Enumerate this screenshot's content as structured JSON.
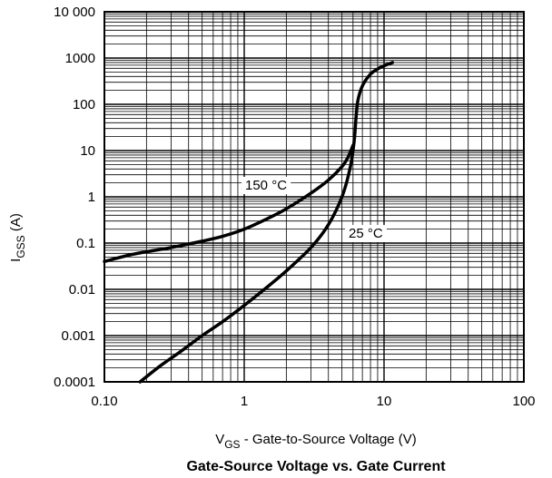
{
  "chart_data": {
    "type": "line",
    "title": "Gate-Source Voltage vs. Gate Current",
    "xlabel": {
      "main": "V",
      "sub": "GS",
      "rest": " - Gate-to-Source Voltage (V)"
    },
    "ylabel": {
      "main": "I",
      "sub": "GSS",
      "rest": " (A)"
    },
    "x_scale": "log",
    "y_scale": "log",
    "xlim": [
      0.1,
      100
    ],
    "ylim": [
      0.0001,
      10000
    ],
    "grid": true,
    "x_ticks": [
      {
        "value": 0.1,
        "label": "0.10"
      },
      {
        "value": 1,
        "label": "1"
      },
      {
        "value": 10,
        "label": "10"
      },
      {
        "value": 100,
        "label": "100"
      }
    ],
    "y_ticks": [
      {
        "value": 0.0001,
        "label": "0.0001"
      },
      {
        "value": 0.001,
        "label": "0.001"
      },
      {
        "value": 0.01,
        "label": "0.01"
      },
      {
        "value": 0.1,
        "label": "0.1"
      },
      {
        "value": 1,
        "label": "1"
      },
      {
        "value": 10,
        "label": "10"
      },
      {
        "value": 100,
        "label": "100"
      },
      {
        "value": 1000,
        "label": "1000"
      },
      {
        "value": 10000,
        "label": "10 000"
      }
    ],
    "series": [
      {
        "name": "150 °C",
        "x": [
          0.1,
          0.15,
          0.2,
          0.3,
          0.5,
          0.7,
          1.0,
          1.5,
          2.0,
          3.0,
          4.0,
          5.0,
          5.5,
          6.0
        ],
        "y": [
          0.04,
          0.055,
          0.065,
          0.08,
          0.11,
          0.14,
          0.2,
          0.35,
          0.55,
          1.2,
          2.3,
          4.5,
          7,
          13
        ]
      },
      {
        "name": "25 °C",
        "x": [
          0.18,
          0.25,
          0.35,
          0.5,
          0.7,
          1.0,
          1.5,
          2.0,
          3.0,
          4.0,
          5.0,
          5.7,
          6.1,
          6.3,
          6.5,
          7.0,
          8.0,
          9.0,
          10.0,
          11.5
        ],
        "y": [
          0.0001,
          0.00022,
          0.00045,
          0.001,
          0.002,
          0.0045,
          0.012,
          0.025,
          0.08,
          0.25,
          1.0,
          4,
          15,
          50,
          120,
          250,
          450,
          580,
          680,
          800
        ]
      }
    ]
  },
  "labels": {
    "series_150": "150 °C",
    "series_25": "25 °C"
  }
}
